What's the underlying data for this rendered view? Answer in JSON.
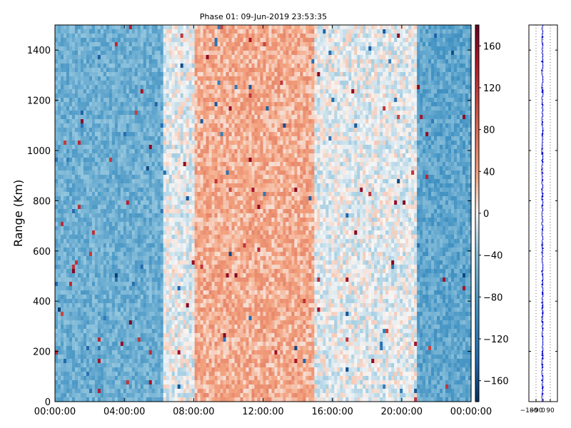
{
  "chart_data": [
    {
      "type": "heatmap",
      "title": "Phase 01: 09-Jun-2019 23:53:35",
      "xlabel": "",
      "ylabel": "Range (Km)",
      "x_tick_labels": [
        "00:00:00",
        "04:00:00",
        "08:00:00",
        "12:00:00",
        "16:00:00",
        "20:00:00",
        "00:00:00"
      ],
      "x_ticks_hours": [
        0,
        4,
        8,
        12,
        16,
        20,
        24
      ],
      "xlim_hours": [
        0,
        24
      ],
      "y_ticks": [
        0,
        200,
        400,
        600,
        800,
        1000,
        1200,
        1400
      ],
      "ylim": [
        0,
        1500
      ],
      "colormap": "RdBu_r",
      "colorbar": {
        "ticks": [
          160,
          120,
          80,
          40,
          0,
          -40,
          -80,
          -120,
          -160
        ],
        "range": [
          -180,
          180
        ]
      },
      "value_pattern_by_time": [
        {
          "hours": [
            0,
            6.25
          ],
          "typical_value": -60
        },
        {
          "hours": [
            6.25,
            8
          ],
          "typical_value": -5
        },
        {
          "hours": [
            8,
            15
          ],
          "typical_value": 35
        },
        {
          "hours": [
            15,
            20.9
          ],
          "typical_value": -5
        },
        {
          "hours": [
            20.9,
            24
          ],
          "typical_value": -70
        }
      ],
      "colors": {
        "negative_strong": "#053061",
        "negative": "#2166ac",
        "neutral": "#f7f7f7",
        "positive": "#d6604d",
        "positive_strong": "#67001f"
      }
    },
    {
      "type": "line",
      "x_tick_labels": [
        "−180",
        "−90",
        "0",
        "90"
      ],
      "x_ticks": [
        -180,
        -90,
        0,
        90
      ],
      "xlim": [
        -180,
        180
      ],
      "ylim": [
        0,
        1500
      ],
      "grid": true,
      "typical_x_value": -10,
      "color": "#0000cc"
    }
  ]
}
